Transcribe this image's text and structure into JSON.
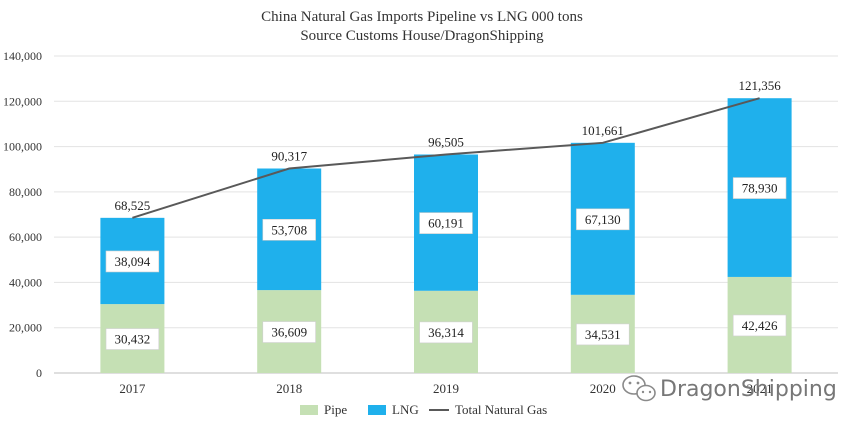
{
  "chart_data": {
    "type": "bar",
    "stacked": true,
    "title": "China Natural Gas Imports Pipeline vs LNG 000 tons",
    "subtitle": "Source Customs House/DragonShipping",
    "categories": [
      "2017",
      "2018",
      "2019",
      "2020",
      "2021"
    ],
    "series": [
      {
        "name": "Pipe",
        "type": "bar",
        "color": "#c5e0b4",
        "values": [
          30432,
          36609,
          36314,
          34531,
          42426
        ]
      },
      {
        "name": "LNG",
        "type": "bar",
        "color": "#1fb0ec",
        "values": [
          38094,
          53708,
          60191,
          67130,
          78930
        ]
      },
      {
        "name": "Total Natural Gas",
        "type": "line",
        "color": "#595959",
        "values": [
          68525,
          90317,
          96505,
          101661,
          121356
        ]
      }
    ],
    "ylim": [
      0,
      140000
    ],
    "yticks": [
      0,
      20000,
      40000,
      60000,
      80000,
      100000,
      120000,
      140000
    ],
    "ytick_labels": [
      "0",
      "20,000",
      "40,000",
      "60,000",
      "80,000",
      "100,000",
      "120,000",
      "140,000"
    ],
    "data_labels": {
      "Pipe": [
        "30,432",
        "36,609",
        "36,314",
        "34,531",
        "42,426"
      ],
      "LNG": [
        "38,094",
        "53,708",
        "60,191",
        "67,130",
        "78,930"
      ],
      "Total Natural Gas": [
        "68,525",
        "90,317",
        "96,505",
        "101,661",
        "121,356"
      ]
    },
    "grid": true,
    "legend_position": "bottom"
  },
  "watermark": {
    "text": "DragonShipping",
    "icon": "wechat-icon"
  }
}
